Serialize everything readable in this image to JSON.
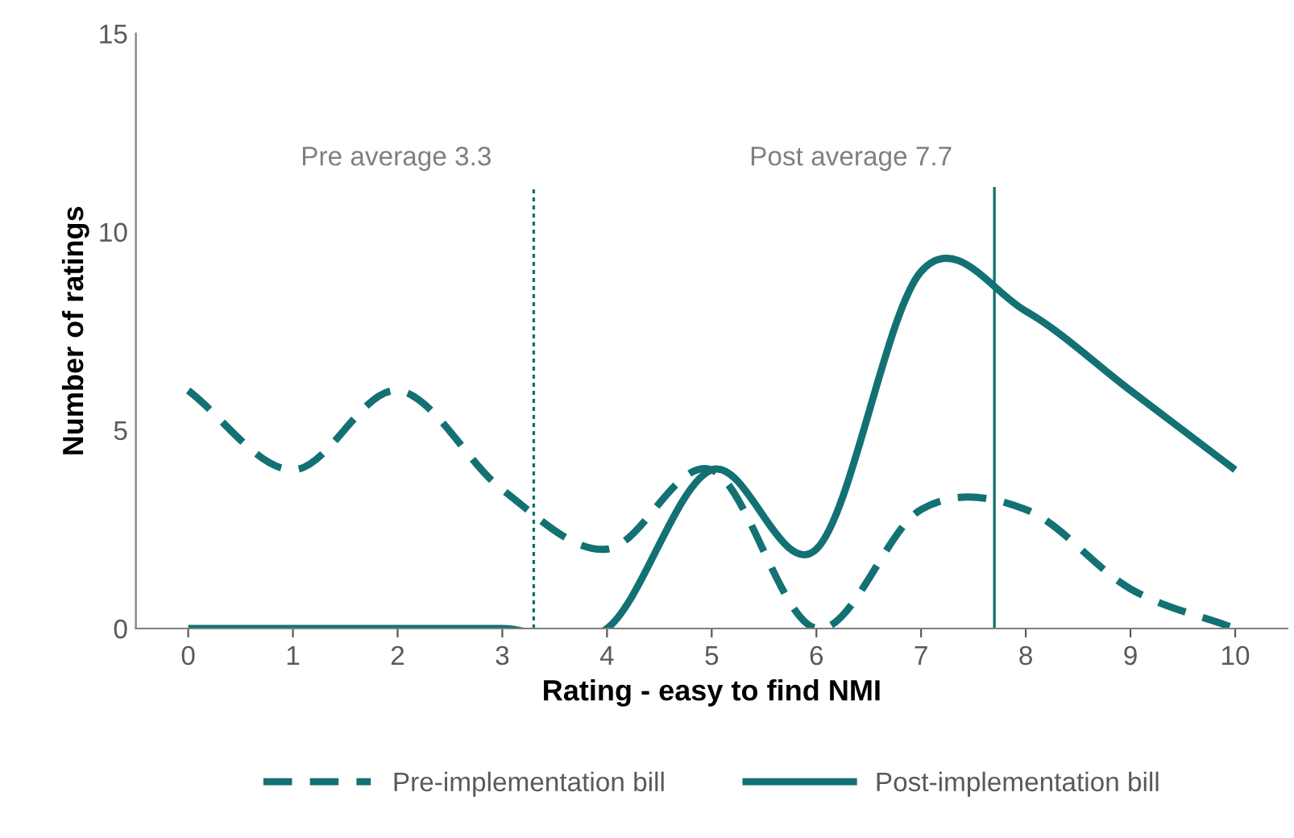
{
  "chart_data": {
    "type": "line",
    "x": [
      0,
      1,
      2,
      3,
      4,
      5,
      6,
      7,
      8,
      9,
      10
    ],
    "xlim": [
      -0.5,
      10.5
    ],
    "xticks": [
      0,
      1,
      2,
      3,
      4,
      5,
      6,
      7,
      8,
      9,
      10
    ],
    "ylim": [
      0,
      15
    ],
    "yticks": [
      0,
      5,
      10,
      15
    ],
    "xlabel": "Rating - easy to find NMI",
    "ylabel": "Number of ratings",
    "series": [
      {
        "name": "Pre-implementation bill",
        "color": "#137173",
        "line_style": "dashed",
        "values": [
          6,
          4,
          6,
          3.5,
          2,
          4,
          0,
          3,
          3,
          1,
          0
        ]
      },
      {
        "name": "Post-implementation bill",
        "color": "#137173",
        "line_style": "solid",
        "values": [
          0,
          0,
          0,
          0,
          0,
          4,
          2,
          9,
          8,
          6,
          4
        ]
      }
    ],
    "ref_lines": [
      {
        "axis": "x",
        "value": 3.3,
        "label": "Pre average 3.3",
        "color": "#137173",
        "line_style": "dotted"
      },
      {
        "axis": "x",
        "value": 7.7,
        "label": "Post average 7.7",
        "color": "#137173",
        "line_style": "solid"
      }
    ],
    "grid": false,
    "legend": "bottom",
    "marker": "none"
  }
}
